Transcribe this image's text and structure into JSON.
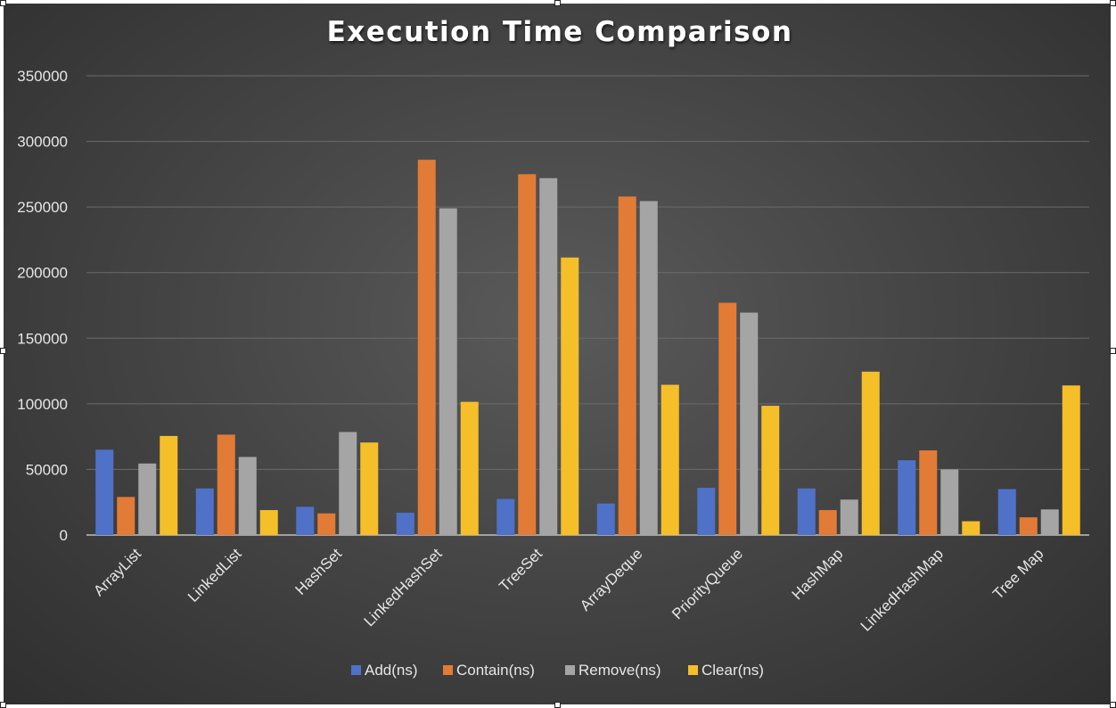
{
  "chart_data": {
    "type": "bar",
    "title": "Execution Time Comparison",
    "xlabel": "",
    "ylabel": "",
    "ylim": [
      0,
      350000
    ],
    "ytick_step": 50000,
    "grid": true,
    "legend_position": "bottom",
    "categories": [
      "ArrayList",
      "LinkedList",
      "HashSet",
      "LinkedHashSet",
      "TreeSet",
      "ArrayDeque",
      "PriorityQueue",
      "HashMap",
      "LinkedHashMap",
      "Tree Map"
    ],
    "series": [
      {
        "name": "Add(ns)",
        "color": "#4f72c8",
        "values": [
          65000,
          35500,
          21500,
          17000,
          27500,
          24000,
          36000,
          35500,
          57000,
          35000
        ]
      },
      {
        "name": "Contain(ns)",
        "color": "#e27b35",
        "values": [
          29000,
          76500,
          16500,
          286000,
          275000,
          258000,
          177000,
          19000,
          64500,
          13500
        ]
      },
      {
        "name": "Remove(ns)",
        "color": "#a5a5a5",
        "values": [
          54500,
          59500,
          78500,
          249000,
          272000,
          254500,
          169500,
          27000,
          50000,
          19500
        ]
      },
      {
        "name": "Clear(ns)",
        "color": "#f5bf2a",
        "values": [
          75500,
          19000,
          70500,
          101500,
          211500,
          114500,
          98500,
          124500,
          10500,
          114000
        ]
      }
    ]
  }
}
